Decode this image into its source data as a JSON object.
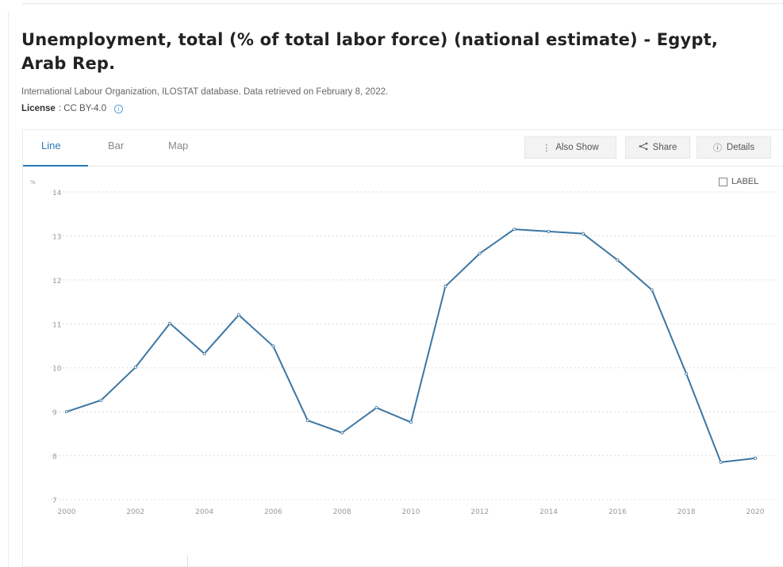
{
  "page": {
    "title": "Unemployment, total (% of total labor force) (national estimate) - Egypt, Arab Rep.",
    "source": "International Labour Organization, ILOSTAT database. Data retrieved on February 8, 2022.",
    "license_label": "License",
    "license_value": ": CC BY-4.0"
  },
  "tabs": [
    {
      "label": "Line",
      "active": true
    },
    {
      "label": "Bar",
      "active": false
    },
    {
      "label": "Map",
      "active": false
    }
  ],
  "toolbar": {
    "also_show": "Also Show",
    "share": "Share",
    "details": "Details"
  },
  "label_toggle": "LABEL",
  "colors": {
    "line": "#3c76a3",
    "accent": "#2a7ab6",
    "grid": "#dcdcdc",
    "tick": "#999999"
  },
  "chart_data": {
    "type": "line",
    "title": "",
    "ylabel": "%",
    "xlabel": "",
    "ylim": [
      7,
      14
    ],
    "xlim": [
      2000,
      2020
    ],
    "yticks": [
      7,
      8,
      9,
      10,
      11,
      12,
      13,
      14
    ],
    "xticks": [
      2000,
      2002,
      2004,
      2006,
      2008,
      2010,
      2012,
      2014,
      2016,
      2018,
      2020
    ],
    "grid": true,
    "series": [
      {
        "x": [
          2000,
          2001,
          2002,
          2003,
          2004,
          2005,
          2006,
          2007,
          2008,
          2009,
          2010,
          2011,
          2012,
          2013,
          2014,
          2015,
          2016,
          2017,
          2018,
          2019,
          2020
        ],
        "values": [
          9.0,
          9.26,
          10.01,
          11.01,
          10.32,
          11.2,
          10.49,
          8.8,
          8.52,
          9.09,
          8.76,
          11.85,
          12.6,
          13.15,
          13.1,
          13.05,
          12.45,
          11.77,
          9.86,
          7.85,
          7.94
        ]
      }
    ]
  }
}
